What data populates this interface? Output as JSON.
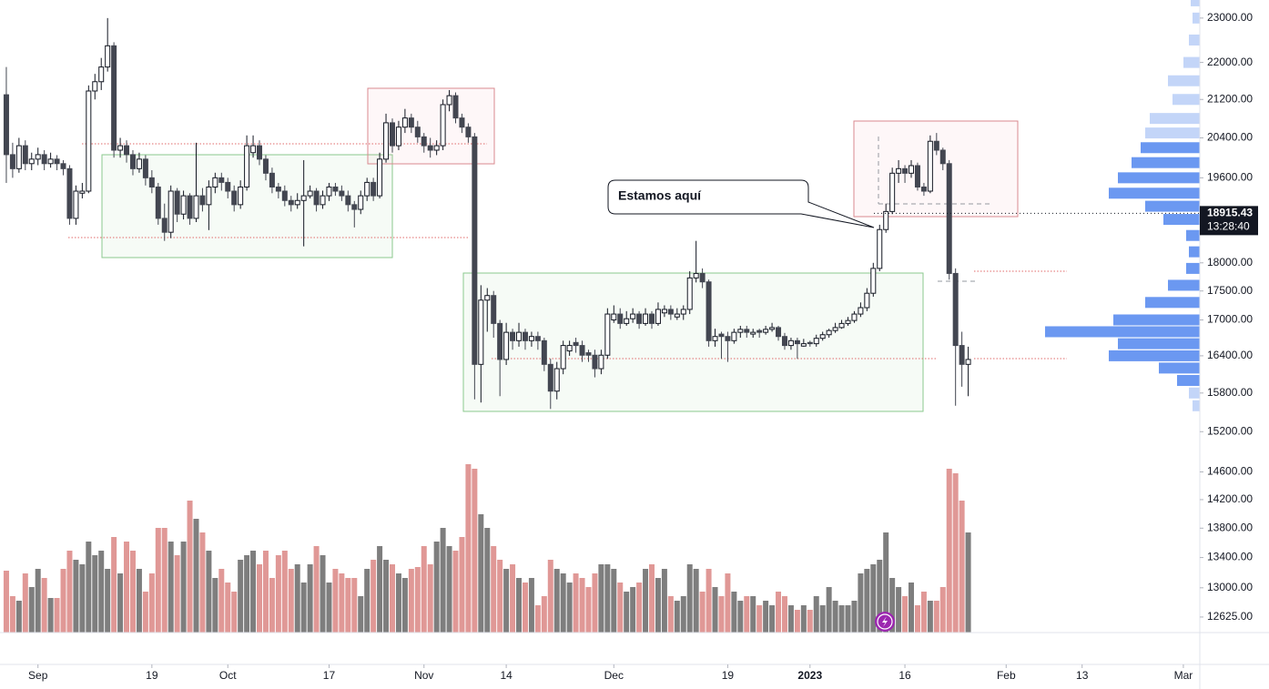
{
  "chart_data": {
    "type": "candlestick",
    "log_scale": true,
    "up_color": "#ffffff",
    "down_color": "#434651",
    "outline_color": "#131722",
    "xlim": [
      -1,
      188.6
    ],
    "ylim": [
      12430,
      23420
    ],
    "xticks": [
      {
        "value": 5,
        "label": "Sep"
      },
      {
        "value": 23,
        "label": "19"
      },
      {
        "value": 35,
        "label": "Oct"
      },
      {
        "value": 51,
        "label": "17"
      },
      {
        "value": 66,
        "label": "Nov"
      },
      {
        "value": 79,
        "label": "14"
      },
      {
        "value": 96,
        "label": "Dec"
      },
      {
        "value": 114,
        "label": "19"
      },
      {
        "value": 127,
        "label": "2023",
        "bold": true
      },
      {
        "value": 142,
        "label": "16"
      },
      {
        "value": 158,
        "label": "Feb"
      },
      {
        "value": 170,
        "label": "13"
      },
      {
        "value": 186,
        "label": "Mar"
      }
    ],
    "yticks": [
      {
        "value": 23000,
        "label": "23000.00"
      },
      {
        "value": 22000,
        "label": "22000.00"
      },
      {
        "value": 21200,
        "label": "21200.00"
      },
      {
        "value": 20400,
        "label": "20400.00"
      },
      {
        "value": 19600,
        "label": "19600.00"
      },
      {
        "value": 18000,
        "label": "18000.00"
      },
      {
        "value": 17500,
        "label": "17500.00"
      },
      {
        "value": 17000,
        "label": "17000.00"
      },
      {
        "value": 16400,
        "label": "16400.00"
      },
      {
        "value": 15800,
        "label": "15800.00"
      },
      {
        "value": 15200,
        "label": "15200.00"
      },
      {
        "value": 14600,
        "label": "14600.00"
      },
      {
        "value": 14200,
        "label": "14200.00"
      },
      {
        "value": 13800,
        "label": "13800.00"
      },
      {
        "value": 13400,
        "label": "13400.00"
      },
      {
        "value": 13000,
        "label": "13000.00"
      },
      {
        "value": 12625,
        "label": "12625.00"
      }
    ],
    "last_price": 18915.43,
    "countdown": "13:28:40",
    "annotation": "Estamos aquí",
    "ohlc": [
      [
        21300,
        21900,
        19500,
        20060
      ],
      [
        20060,
        20300,
        19600,
        19780
      ],
      [
        19780,
        20400,
        19700,
        20240
      ],
      [
        20240,
        20350,
        19750,
        19880
      ],
      [
        19880,
        20100,
        19750,
        19970
      ],
      [
        19970,
        20200,
        19850,
        20060
      ],
      [
        20060,
        20150,
        19750,
        19880
      ],
      [
        19880,
        20100,
        19800,
        19970
      ],
      [
        19970,
        20050,
        19750,
        19880
      ],
      [
        19880,
        19950,
        19650,
        19780
      ],
      [
        19780,
        19850,
        18700,
        18820
      ],
      [
        18820,
        19450,
        18700,
        19340
      ],
      [
        19300,
        19500,
        19200,
        19340
      ],
      [
        19340,
        21500,
        19300,
        21380
      ],
      [
        21380,
        21750,
        21200,
        21580
      ],
      [
        21580,
        22100,
        21400,
        21900
      ],
      [
        21900,
        23000,
        21800,
        22370
      ],
      [
        22370,
        22450,
        20000,
        20150
      ],
      [
        20150,
        20400,
        20000,
        20240
      ],
      [
        20240,
        20350,
        19900,
        20060
      ],
      [
        20060,
        20150,
        19650,
        19780
      ],
      [
        19780,
        20100,
        19700,
        19970
      ],
      [
        19970,
        20050,
        19450,
        19600
      ],
      [
        19600,
        19750,
        19300,
        19420
      ],
      [
        19420,
        19500,
        18700,
        18820
      ],
      [
        18820,
        19100,
        18400,
        18560
      ],
      [
        18560,
        19450,
        18450,
        19340
      ],
      [
        19340,
        19400,
        18750,
        18900
      ],
      [
        18900,
        19350,
        18800,
        19250
      ],
      [
        19250,
        19300,
        18700,
        18820
      ],
      [
        18820,
        20300,
        18750,
        19250
      ],
      [
        19250,
        19400,
        18950,
        19080
      ],
      [
        19080,
        19550,
        18600,
        19420
      ],
      [
        19420,
        19700,
        19300,
        19600
      ],
      [
        19600,
        19700,
        19350,
        19510
      ],
      [
        19510,
        19600,
        19200,
        19340
      ],
      [
        19340,
        19450,
        18950,
        19080
      ],
      [
        19080,
        19550,
        19000,
        19420
      ],
      [
        19420,
        20450,
        19350,
        20240
      ],
      [
        20100,
        20450,
        20000,
        20240
      ],
      [
        20240,
        20350,
        19850,
        19970
      ],
      [
        19970,
        20050,
        19550,
        19690
      ],
      [
        19690,
        19800,
        19300,
        19420
      ],
      [
        19420,
        19500,
        19200,
        19340
      ],
      [
        19340,
        19450,
        19050,
        19160
      ],
      [
        19160,
        19250,
        18950,
        19080
      ],
      [
        19080,
        19300,
        19000,
        19160
      ],
      [
        19160,
        19950,
        18300,
        19250
      ],
      [
        19250,
        19450,
        19200,
        19340
      ],
      [
        19340,
        19400,
        18950,
        19080
      ],
      [
        19080,
        19350,
        19000,
        19250
      ],
      [
        19250,
        19500,
        19150,
        19420
      ],
      [
        19420,
        19500,
        19250,
        19340
      ],
      [
        19340,
        19450,
        19150,
        19250
      ],
      [
        19250,
        19350,
        18950,
        19080
      ],
      [
        19080,
        19150,
        18650,
        18990
      ],
      [
        18990,
        19350,
        18900,
        19250
      ],
      [
        19250,
        19600,
        19150,
        19510
      ],
      [
        19510,
        19600,
        19150,
        19250
      ],
      [
        19250,
        20100,
        19200,
        19970
      ],
      [
        19970,
        20900,
        19900,
        20710
      ],
      [
        20710,
        20800,
        20100,
        20240
      ],
      [
        20240,
        20750,
        20150,
        20620
      ],
      [
        20620,
        21000,
        20500,
        20810
      ],
      [
        20810,
        20900,
        20500,
        20620
      ],
      [
        20620,
        20750,
        20300,
        20420
      ],
      [
        20420,
        20500,
        20100,
        20240
      ],
      [
        20240,
        20400,
        20000,
        20150
      ],
      [
        20150,
        20350,
        20050,
        20240
      ],
      [
        20240,
        21200,
        20150,
        21090
      ],
      [
        21090,
        21400,
        20950,
        21280
      ],
      [
        21280,
        21350,
        20700,
        20810
      ],
      [
        20810,
        20900,
        20500,
        20620
      ],
      [
        20620,
        20700,
        20300,
        20420
      ],
      [
        20420,
        20500,
        15700,
        16260
      ],
      [
        16260,
        17600,
        15650,
        17340
      ],
      [
        17340,
        17550,
        16800,
        17420
      ],
      [
        17420,
        17500,
        16700,
        16940
      ],
      [
        16940,
        17000,
        15750,
        16340
      ],
      [
        16340,
        16950,
        16250,
        16790
      ],
      [
        16790,
        16850,
        16500,
        16650
      ],
      [
        16650,
        16950,
        16550,
        16790
      ],
      [
        16790,
        16850,
        16500,
        16650
      ],
      [
        16650,
        16800,
        16550,
        16720
      ],
      [
        16720,
        16800,
        16500,
        16650
      ],
      [
        16650,
        16700,
        16150,
        16260
      ],
      [
        16260,
        16350,
        15550,
        15830
      ],
      [
        15830,
        16300,
        15700,
        16190
      ],
      [
        16190,
        16650,
        16100,
        16570
      ],
      [
        16480,
        16650,
        16400,
        16570
      ],
      [
        16620,
        16700,
        16450,
        16570
      ],
      [
        16570,
        16650,
        16300,
        16410
      ],
      [
        16450,
        16500,
        16300,
        16410
      ],
      [
        16410,
        16500,
        16050,
        16190
      ],
      [
        16190,
        16500,
        16100,
        16410
      ],
      [
        16410,
        17200,
        16350,
        17100
      ],
      [
        17000,
        17250,
        16950,
        17100
      ],
      [
        17100,
        17200,
        16850,
        16940
      ],
      [
        16940,
        17150,
        16900,
        17020
      ],
      [
        17020,
        17200,
        16950,
        17100
      ],
      [
        17100,
        17150,
        16850,
        16940
      ],
      [
        16940,
        17200,
        16900,
        17100
      ],
      [
        17100,
        17150,
        16850,
        16940
      ],
      [
        16940,
        17300,
        16900,
        17180
      ],
      [
        17120,
        17250,
        17050,
        17180
      ],
      [
        17180,
        17250,
        17000,
        17100
      ],
      [
        17050,
        17200,
        17000,
        17100
      ],
      [
        17100,
        17250,
        17000,
        17180
      ],
      [
        17180,
        17850,
        17100,
        17730
      ],
      [
        17730,
        18400,
        17650,
        17810
      ],
      [
        17810,
        17900,
        17550,
        17660
      ],
      [
        17660,
        17700,
        16550,
        16650
      ],
      [
        16650,
        16850,
        16550,
        16720
      ],
      [
        16760,
        16800,
        16350,
        16720
      ],
      [
        16720,
        16800,
        16300,
        16650
      ],
      [
        16650,
        16850,
        16600,
        16790
      ],
      [
        16790,
        16900,
        16700,
        16840
      ],
      [
        16840,
        16900,
        16700,
        16790
      ],
      [
        16760,
        16850,
        16700,
        16790
      ],
      [
        16820,
        16850,
        16700,
        16790
      ],
      [
        16790,
        16900,
        16750,
        16840
      ],
      [
        16840,
        16950,
        16800,
        16870
      ],
      [
        16870,
        16900,
        16650,
        16720
      ],
      [
        16720,
        16780,
        16500,
        16570
      ],
      [
        16570,
        16700,
        16500,
        16650
      ],
      [
        16650,
        16700,
        16350,
        16600
      ],
      [
        16560,
        16680,
        16550,
        16600
      ],
      [
        16620,
        16650,
        16550,
        16600
      ],
      [
        16600,
        16750,
        16550,
        16690
      ],
      [
        16690,
        16800,
        16650,
        16750
      ],
      [
        16750,
        16850,
        16700,
        16820
      ],
      [
        16820,
        16950,
        16780,
        16870
      ],
      [
        16870,
        17000,
        16850,
        16940
      ],
      [
        16940,
        17050,
        16900,
        16990
      ],
      [
        16990,
        17150,
        16950,
        17100
      ],
      [
        17100,
        17300,
        17050,
        17210
      ],
      [
        17210,
        17550,
        17150,
        17460
      ],
      [
        17460,
        18000,
        17400,
        17900
      ],
      [
        17900,
        18700,
        17850,
        18610
      ],
      [
        18610,
        19100,
        18550,
        18950
      ],
      [
        18950,
        19800,
        18900,
        19690
      ],
      [
        19690,
        19950,
        19500,
        19780
      ],
      [
        19780,
        19850,
        19500,
        19690
      ],
      [
        19690,
        19950,
        19600,
        19840
      ],
      [
        19840,
        19900,
        19350,
        19420
      ],
      [
        19420,
        19500,
        19250,
        19340
      ],
      [
        19340,
        20450,
        19300,
        20330
      ],
      [
        20330,
        20500,
        20050,
        20150
      ],
      [
        20150,
        20200,
        19750,
        19880
      ],
      [
        19880,
        19950,
        17700,
        17810
      ],
      [
        17810,
        17900,
        15600,
        16570
      ],
      [
        16570,
        16800,
        15900,
        16260
      ],
      [
        16260,
        16550,
        15750,
        16340
      ]
    ],
    "volume": {
      "vlim": [
        0,
        200
      ],
      "up_color": "#7e7e7e",
      "down_color": "#e09896",
      "values": [
        68,
        40,
        35,
        65,
        50,
        70,
        60,
        38,
        38,
        70,
        90,
        80,
        75,
        100,
        85,
        90,
        70,
        105,
        65,
        100,
        90,
        70,
        45,
        65,
        115,
        115,
        100,
        85,
        100,
        145,
        125,
        110,
        90,
        60,
        70,
        55,
        45,
        80,
        85,
        90,
        75,
        90,
        60,
        85,
        90,
        70,
        75,
        55,
        75,
        95,
        85,
        55,
        70,
        65,
        60,
        60,
        40,
        70,
        80,
        95,
        80,
        75,
        65,
        60,
        70,
        72,
        95,
        75,
        100,
        115,
        95,
        90,
        105,
        185,
        180,
        130,
        115,
        95,
        80,
        70,
        75,
        60,
        55,
        60,
        30,
        40,
        80,
        70,
        65,
        55,
        65,
        60,
        50,
        65,
        75,
        75,
        70,
        55,
        45,
        50,
        55,
        70,
        75,
        60,
        70,
        40,
        35,
        40,
        75,
        70,
        45,
        70,
        50,
        40,
        65,
        45,
        35,
        40,
        40,
        30,
        35,
        30,
        45,
        40,
        30,
        25,
        30,
        25,
        40,
        30,
        50,
        35,
        30,
        30,
        35,
        65,
        70,
        75,
        80,
        110,
        60,
        50,
        40,
        55,
        30,
        45,
        35,
        35,
        50,
        180,
        175,
        145,
        110
      ]
    },
    "volume_profile": {
      "xlim": [
        0,
        200
      ],
      "series": [
        {
          "color": "#bcd0f7",
          "levels": [
            23400,
            23000,
            22500,
            22000,
            21600,
            21200,
            20800,
            20500,
            15800,
            15600
          ],
          "lengths": [
            10,
            8,
            12,
            18,
            35,
            30,
            55,
            60,
            12,
            8
          ]
        },
        {
          "color": "#5b8def",
          "levels": [
            20200,
            19900,
            19600,
            19300,
            19050,
            18800,
            18500,
            18200,
            17900,
            17600,
            17300,
            17000,
            16800,
            16600,
            16400,
            16200,
            16000
          ],
          "lengths": [
            65,
            75,
            90,
            100,
            60,
            40,
            15,
            12,
            15,
            35,
            60,
            95,
            170,
            90,
            100,
            45,
            25
          ]
        }
      ]
    }
  }
}
